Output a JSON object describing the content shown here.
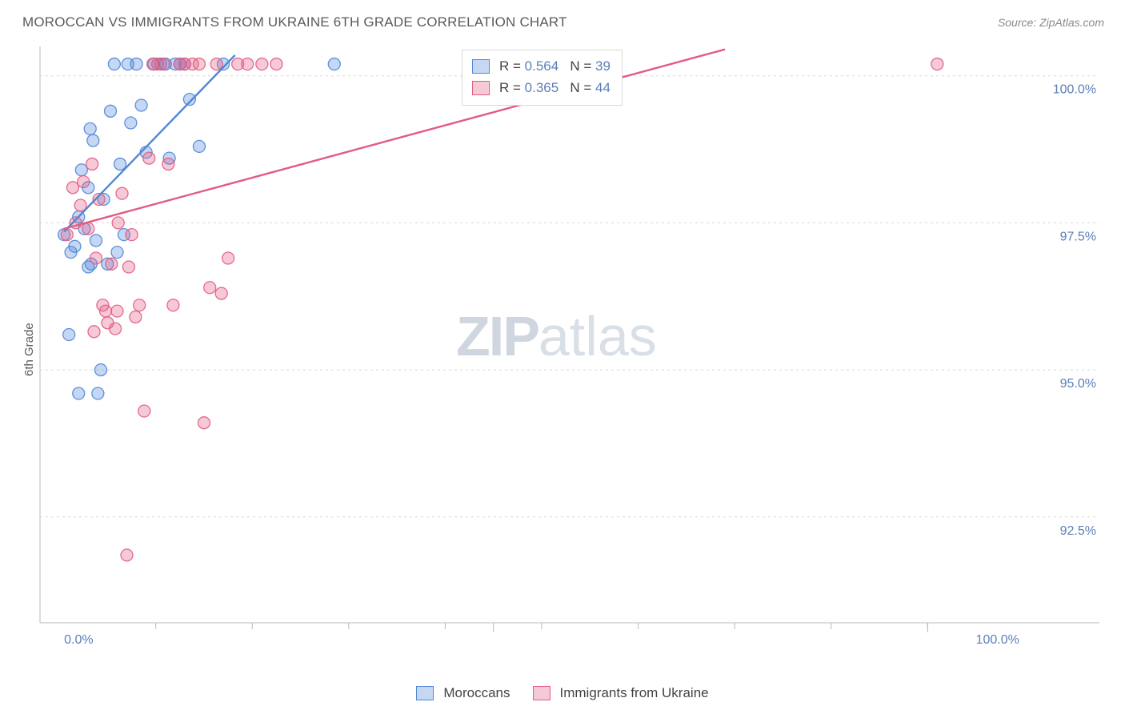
{
  "title": "MOROCCAN VS IMMIGRANTS FROM UKRAINE 6TH GRADE CORRELATION CHART",
  "source": "Source: ZipAtlas.com",
  "yAxisLabel": "6th Grade",
  "watermark": {
    "bold": "ZIP",
    "light": "atlas"
  },
  "chart": {
    "type": "scatter",
    "background_color": "#ffffff",
    "axis_color": "#b9b9b9",
    "grid_color": "#d8d8d8",
    "tick_color": "#b9b9b9",
    "xDomain": [
      -2,
      102
    ],
    "yDomain": [
      90.7,
      100.5
    ],
    "yTicks": [
      92.5,
      95.0,
      97.5,
      100.0
    ],
    "yTickLabels": [
      "92.5%",
      "95.0%",
      "97.5%",
      "100.0%"
    ],
    "xTickEndpoints": [
      0,
      100
    ],
    "xTickEndpointLabels": [
      "0.0%",
      "100.0%"
    ],
    "xMinorTicks": [
      10,
      20,
      30,
      40,
      50,
      60,
      70,
      80,
      90
    ],
    "marker_radius": 7.5,
    "marker_stroke_width": 1.3,
    "marker_fill_opacity": 0.33,
    "trend_line_width": 2.4
  },
  "series": [
    {
      "key": "moroccans",
      "label": "Moroccans",
      "stroke": "#4f86d9",
      "fill": "#4f86d9",
      "R": "0.564",
      "N": "39",
      "trend": {
        "x1": 0.5,
        "y1": 97.35,
        "x2": 18.2,
        "y2": 100.35
      },
      "points": [
        [
          0.5,
          97.3
        ],
        [
          1.2,
          97.0
        ],
        [
          1.6,
          97.1
        ],
        [
          2.0,
          97.6
        ],
        [
          2.3,
          98.4
        ],
        [
          2.6,
          97.4
        ],
        [
          3.0,
          98.1
        ],
        [
          3.2,
          99.1
        ],
        [
          3.5,
          98.9
        ],
        [
          3.8,
          97.2
        ],
        [
          4.0,
          94.6
        ],
        [
          4.3,
          95.0
        ],
        [
          4.6,
          97.9
        ],
        [
          5.0,
          96.8
        ],
        [
          5.3,
          99.4
        ],
        [
          5.7,
          100.2
        ],
        [
          6.0,
          97.0
        ],
        [
          6.3,
          98.5
        ],
        [
          6.7,
          97.3
        ],
        [
          7.1,
          100.2
        ],
        [
          7.4,
          99.2
        ],
        [
          8.0,
          100.2
        ],
        [
          8.5,
          99.5
        ],
        [
          9.0,
          98.7
        ],
        [
          9.8,
          100.2
        ],
        [
          10.5,
          100.2
        ],
        [
          11.0,
          100.2
        ],
        [
          11.4,
          98.6
        ],
        [
          12.0,
          100.2
        ],
        [
          12.5,
          100.2
        ],
        [
          13.0,
          100.2
        ],
        [
          13.5,
          99.6
        ],
        [
          14.5,
          98.8
        ],
        [
          17.0,
          100.2
        ],
        [
          2.0,
          94.6
        ],
        [
          1.0,
          95.6
        ],
        [
          3.0,
          96.75
        ],
        [
          3.3,
          96.8
        ],
        [
          28.5,
          100.2
        ]
      ]
    },
    {
      "key": "ukraine",
      "label": "Immigrants from Ukraine",
      "stroke": "#e35b82",
      "fill": "#e35b82",
      "R": "0.365",
      "N": "44",
      "trend": {
        "x1": 0.5,
        "y1": 97.4,
        "x2": 69.0,
        "y2": 100.45
      },
      "points": [
        [
          0.8,
          97.3
        ],
        [
          1.4,
          98.1
        ],
        [
          1.7,
          97.5
        ],
        [
          2.2,
          97.8
        ],
        [
          2.5,
          98.2
        ],
        [
          3.0,
          97.4
        ],
        [
          3.4,
          98.5
        ],
        [
          3.8,
          96.9
        ],
        [
          4.1,
          97.9
        ],
        [
          4.5,
          96.1
        ],
        [
          5.0,
          95.8
        ],
        [
          5.4,
          96.8
        ],
        [
          5.8,
          95.7
        ],
        [
          6.1,
          97.5
        ],
        [
          6.5,
          98.0
        ],
        [
          7.0,
          91.85
        ],
        [
          7.5,
          97.3
        ],
        [
          7.9,
          95.9
        ],
        [
          8.3,
          96.1
        ],
        [
          8.8,
          94.3
        ],
        [
          9.3,
          98.6
        ],
        [
          9.7,
          100.2
        ],
        [
          10.2,
          100.2
        ],
        [
          10.8,
          100.2
        ],
        [
          11.3,
          98.5
        ],
        [
          11.8,
          96.1
        ],
        [
          12.5,
          100.2
        ],
        [
          13.0,
          100.2
        ],
        [
          13.8,
          100.2
        ],
        [
          14.5,
          100.2
        ],
        [
          15.0,
          94.1
        ],
        [
          15.6,
          96.4
        ],
        [
          16.3,
          100.2
        ],
        [
          17.5,
          96.9
        ],
        [
          18.5,
          100.2
        ],
        [
          19.5,
          100.2
        ],
        [
          21.0,
          100.2
        ],
        [
          22.5,
          100.2
        ],
        [
          6.0,
          96.0
        ],
        [
          7.2,
          96.75
        ],
        [
          16.8,
          96.3
        ],
        [
          4.8,
          96.0
        ],
        [
          3.6,
          95.65
        ],
        [
          91.0,
          100.2
        ]
      ]
    }
  ],
  "legendCorrelation": {
    "rLabel": "R =",
    "nLabel": "N ="
  },
  "bottomLegend": {
    "items": [
      {
        "seriesKey": "moroccans"
      },
      {
        "seriesKey": "ukraine"
      }
    ]
  }
}
